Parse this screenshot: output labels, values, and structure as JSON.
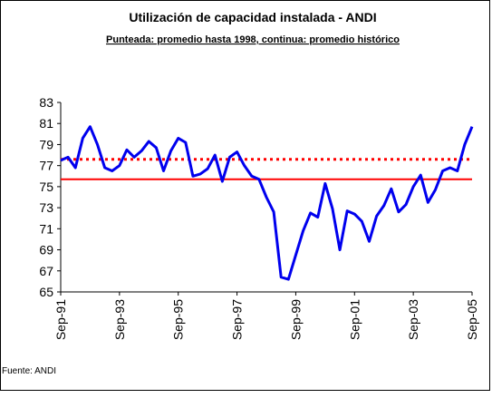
{
  "chart_data": {
    "type": "line",
    "title": "Utilización de capacidad instalada - ANDI",
    "subtitle": "Punteada: promedio hasta 1998, continua: promedio histórico",
    "source": "Fuente: ANDI",
    "categories": [
      "Sep-91",
      null,
      null,
      null,
      null,
      null,
      null,
      null,
      "Sep-93",
      null,
      null,
      null,
      null,
      null,
      null,
      null,
      "Sep-95",
      null,
      null,
      null,
      null,
      null,
      null,
      null,
      "Sep-97",
      null,
      null,
      null,
      null,
      null,
      null,
      null,
      "Sep-99",
      null,
      null,
      null,
      null,
      null,
      null,
      null,
      "Sep-01",
      null,
      null,
      null,
      null,
      null,
      null,
      null,
      "Sep-03",
      null,
      null,
      null,
      null,
      null,
      null,
      null,
      "Sep-05"
    ],
    "series": [
      {
        "color": "#0000ee",
        "values": [
          77.5,
          77.8,
          76.8,
          79.6,
          80.7,
          79,
          76.8,
          76.5,
          77,
          78.5,
          77.8,
          78.4,
          79.3,
          78.7,
          76.5,
          78.4,
          79.6,
          79.2,
          76,
          76.2,
          76.7,
          78,
          75.5,
          77.8,
          78.3,
          77,
          76,
          75.7,
          74,
          72.6,
          66.4,
          66.2,
          68.5,
          70.8,
          72.5,
          72.1,
          75.3,
          72.9,
          69,
          72.7,
          72.4,
          71.7,
          69.8,
          72.2,
          73.2,
          74.8,
          72.6,
          73.3,
          75,
          76.1,
          73.5,
          74.7,
          76.5,
          76.8,
          76.5,
          79,
          80.7
        ]
      }
    ],
    "reference_lines": [
      {
        "value": 77.6,
        "style": "dotted",
        "color": "#ff0000"
      },
      {
        "value": 75.7,
        "style": "solid",
        "color": "#ff0000"
      }
    ],
    "ylim": [
      65,
      83
    ],
    "yticks": [
      65,
      67,
      69,
      71,
      73,
      75,
      77,
      79,
      81,
      83
    ]
  }
}
